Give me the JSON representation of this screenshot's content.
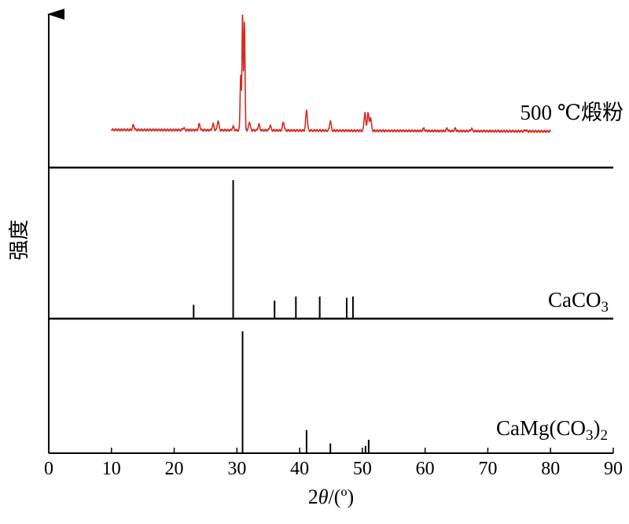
{
  "chart_data": {
    "type": "line",
    "title": "",
    "xlabel_prefix": "2",
    "xlabel_symbol": "θ",
    "xlabel_suffix": "/(º)",
    "ylabel": "强度",
    "xlim": [
      0,
      90
    ],
    "xticks": [
      0,
      10,
      20,
      30,
      40,
      50,
      60,
      70,
      80,
      90
    ],
    "grid": false,
    "legend": "none",
    "panels": [
      {
        "name": "500 ℃煅粉",
        "kind": "pattern",
        "color": "#d62b22",
        "baseline": 0.05,
        "x_start": 10,
        "x_end": 80,
        "peaks": [
          {
            "x": 13.5,
            "y": 0.09
          },
          {
            "x": 21.5,
            "y": 0.07
          },
          {
            "x": 24.0,
            "y": 0.1
          },
          {
            "x": 26.2,
            "y": 0.1
          },
          {
            "x": 27.0,
            "y": 0.13
          },
          {
            "x": 29.4,
            "y": 0.08
          },
          {
            "x": 30.6,
            "y": 0.5
          },
          {
            "x": 30.9,
            "y": 1.0
          },
          {
            "x": 31.2,
            "y": 0.93
          },
          {
            "x": 32.0,
            "y": 0.12
          },
          {
            "x": 33.5,
            "y": 0.1
          },
          {
            "x": 35.3,
            "y": 0.09
          },
          {
            "x": 37.4,
            "y": 0.12
          },
          {
            "x": 41.1,
            "y": 0.22
          },
          {
            "x": 44.9,
            "y": 0.13
          },
          {
            "x": 50.4,
            "y": 0.2
          },
          {
            "x": 50.9,
            "y": 0.2
          },
          {
            "x": 51.3,
            "y": 0.16
          },
          {
            "x": 59.8,
            "y": 0.07
          },
          {
            "x": 63.5,
            "y": 0.07
          },
          {
            "x": 64.8,
            "y": 0.07
          },
          {
            "x": 67.4,
            "y": 0.07
          },
          {
            "x": 76.0,
            "y": 0.06
          }
        ]
      },
      {
        "name": "CaCO3",
        "label_main": "CaCO",
        "label_sub": "3",
        "kind": "reference",
        "peaks": [
          {
            "x": 23.1,
            "y": 0.1
          },
          {
            "x": 29.4,
            "y": 1.0
          },
          {
            "x": 36.0,
            "y": 0.13
          },
          {
            "x": 39.4,
            "y": 0.16
          },
          {
            "x": 43.2,
            "y": 0.16
          },
          {
            "x": 47.5,
            "y": 0.15
          },
          {
            "x": 48.5,
            "y": 0.16
          }
        ]
      },
      {
        "name": "CaMg(CO3)2",
        "label_main": "CaMg(CO",
        "label_sub1": "3",
        "label_mid": ")",
        "label_sub2": "2",
        "kind": "reference",
        "peaks": [
          {
            "x": 30.9,
            "y": 1.0
          },
          {
            "x": 41.1,
            "y": 0.19
          },
          {
            "x": 44.9,
            "y": 0.08
          },
          {
            "x": 50.5,
            "y": 0.06
          },
          {
            "x": 51.0,
            "y": 0.11
          }
        ]
      }
    ]
  }
}
